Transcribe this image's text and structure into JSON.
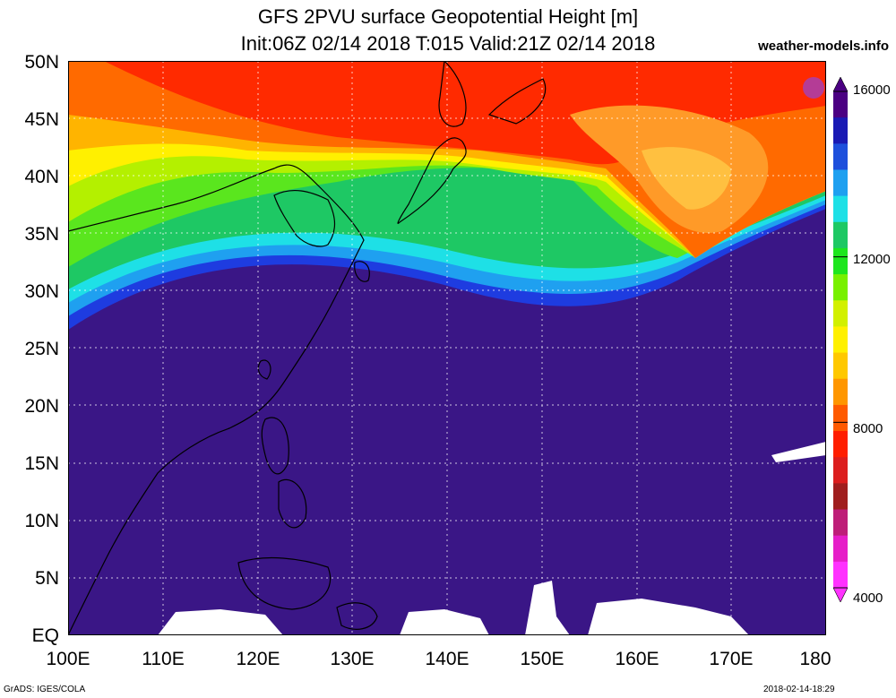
{
  "header": {
    "title_line1": "GFS 2PVU surface Geopotential Height [m]",
    "title_line2": "Init:06Z 02/14 2018 T:015 Valid:21Z 02/14 2018",
    "credit": "weather-models.info"
  },
  "map": {
    "lat_labels": [
      "50N",
      "45N",
      "40N",
      "35N",
      "30N",
      "25N",
      "20N",
      "15N",
      "10N",
      "5N",
      "EQ"
    ],
    "lon_labels": [
      "100E",
      "110E",
      "120E",
      "130E",
      "140E",
      "150E",
      "160E",
      "170E",
      "180"
    ],
    "region": "East Asia / West Pacific"
  },
  "colorbar": {
    "labels": [
      "16000",
      "12000",
      "8000",
      "4000"
    ],
    "colors": [
      "#4b0082",
      "#1a1ab4",
      "#1e50dc",
      "#1fa0f0",
      "#1ee0e6",
      "#1ec864",
      "#1ee61e",
      "#78f000",
      "#d2f000",
      "#fff000",
      "#ffc800",
      "#ff9600",
      "#ff5a00",
      "#ff1e00",
      "#dc1e1e",
      "#a01e1e",
      "#be1e78",
      "#e61ec8",
      "#ff32ff"
    ]
  },
  "footer": {
    "left": "GrADS: IGES/COLA",
    "right": "2018-02-14-18:29"
  }
}
